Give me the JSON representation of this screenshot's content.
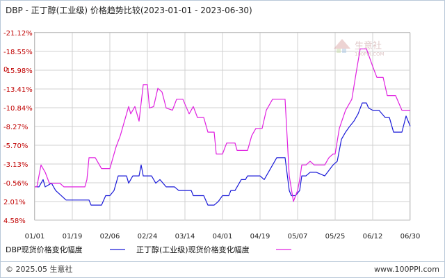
{
  "title": "DBP - 正丁醇(工业级) 价格趋势比较(2023-01-01 - 2023-06-30)",
  "watermark": {
    "name": "生意社",
    "url": "100PPI.COM"
  },
  "footer": {
    "left": "© 2025.05 生意社",
    "right": "www.100PPI.com"
  },
  "colors": {
    "series_dbp": "#1a1ad8",
    "series_nba": "#e020e0",
    "grid": "#d0d0d0",
    "tick": "#c00000",
    "border": "#b8c8d8"
  },
  "chart_data": {
    "type": "line",
    "title": "DBP - 正丁醇(工业级) 价格趋势比较(2023-01-01 - 2023-06-30)",
    "ylim": [
      -21.12,
      4.58
    ],
    "yticks": [
      "4.58%",
      "2.01%",
      "-0.56%",
      "-3.13%",
      "-5.70%",
      "-8.27%",
      "-10.84%",
      "-13.41%",
      "-15.98%",
      "-18.55%",
      "-21.12%"
    ],
    "ytick_values": [
      4.58,
      2.01,
      -0.56,
      -3.13,
      -5.7,
      -8.27,
      -10.84,
      -13.41,
      -15.98,
      -18.55,
      -21.12
    ],
    "zero_label": "0",
    "xticks": [
      "01/01",
      "01/19",
      "02/06",
      "02/24",
      "03/14",
      "04/01",
      "04/19",
      "05/07",
      "05/25",
      "06/12",
      "06/30"
    ],
    "x_start": "2023-01-01",
    "x_end": "2023-06-30",
    "grid": true,
    "legend": "bottom",
    "series": [
      {
        "name": "DBP现货价格变化幅度",
        "points": [
          [
            "2023-01-01",
            0
          ],
          [
            "2023-01-03",
            0
          ],
          [
            "2023-01-05",
            -1.0
          ],
          [
            "2023-01-06",
            0
          ],
          [
            "2023-01-09",
            -0.5
          ],
          [
            "2023-01-11",
            0.5
          ],
          [
            "2023-01-16",
            1.8
          ],
          [
            "2023-01-27",
            1.8
          ],
          [
            "2023-01-28",
            2.5
          ],
          [
            "2023-02-02",
            2.5
          ],
          [
            "2023-02-04",
            1.2
          ],
          [
            "2023-02-06",
            1.2
          ],
          [
            "2023-02-08",
            0.5
          ],
          [
            "2023-02-10",
            -1.5
          ],
          [
            "2023-02-14",
            -1.5
          ],
          [
            "2023-02-15",
            -0.5
          ],
          [
            "2023-02-17",
            -1.5
          ],
          [
            "2023-02-20",
            -1.5
          ],
          [
            "2023-02-21",
            -3.0
          ],
          [
            "2023-02-22",
            -1.5
          ],
          [
            "2023-02-26",
            -1.5
          ],
          [
            "2023-02-28",
            -0.5
          ],
          [
            "2023-03-02",
            -1.0
          ],
          [
            "2023-03-05",
            0
          ],
          [
            "2023-03-09",
            0
          ],
          [
            "2023-03-11",
            0.5
          ],
          [
            "2023-03-17",
            0.5
          ],
          [
            "2023-03-18",
            1.2
          ],
          [
            "2023-03-23",
            1.2
          ],
          [
            "2023-03-25",
            2.5
          ],
          [
            "2023-03-28",
            2.5
          ],
          [
            "2023-03-30",
            2.0
          ],
          [
            "2023-04-01",
            1.2
          ],
          [
            "2023-04-04",
            1.2
          ],
          [
            "2023-04-05",
            0.5
          ],
          [
            "2023-04-07",
            0.5
          ],
          [
            "2023-04-10",
            -1.0
          ],
          [
            "2023-04-12",
            -1.0
          ],
          [
            "2023-04-13",
            -1.5
          ],
          [
            "2023-04-19",
            -1.5
          ],
          [
            "2023-04-21",
            -1.0
          ],
          [
            "2023-04-23",
            -2.0
          ],
          [
            "2023-04-27",
            -4.0
          ],
          [
            "2023-05-01",
            -4.0
          ],
          [
            "2023-05-03",
            0.5
          ],
          [
            "2023-05-04",
            1.2
          ],
          [
            "2023-05-06",
            1.2
          ],
          [
            "2023-05-08",
            0.5
          ],
          [
            "2023-05-09",
            -1.5
          ],
          [
            "2023-05-11",
            -1.5
          ],
          [
            "2023-05-13",
            -2.0
          ],
          [
            "2023-05-16",
            -2.0
          ],
          [
            "2023-05-20",
            -1.5
          ],
          [
            "2023-05-24",
            -3.0
          ],
          [
            "2023-05-26",
            -3.5
          ],
          [
            "2023-05-28",
            -6.5
          ],
          [
            "2023-05-30",
            -7.5
          ],
          [
            "2023-06-01",
            -8.3
          ],
          [
            "2023-06-03",
            -9.0
          ],
          [
            "2023-06-05",
            -10.0
          ],
          [
            "2023-06-07",
            -11.5
          ],
          [
            "2023-06-09",
            -11.5
          ],
          [
            "2023-06-10",
            -10.8
          ],
          [
            "2023-06-12",
            -10.5
          ],
          [
            "2023-06-15",
            -10.5
          ],
          [
            "2023-06-18",
            -9.5
          ],
          [
            "2023-06-20",
            -9.5
          ],
          [
            "2023-06-22",
            -7.5
          ],
          [
            "2023-06-26",
            -7.5
          ],
          [
            "2023-06-28",
            -9.7
          ],
          [
            "2023-06-30",
            -8.3
          ]
        ]
      },
      {
        "name": "正丁醇(工业级)现货价格变化幅度",
        "points": [
          [
            "2023-01-01",
            0
          ],
          [
            "2023-01-02",
            0
          ],
          [
            "2023-01-04",
            -3.0
          ],
          [
            "2023-01-06",
            -2.0
          ],
          [
            "2023-01-08",
            -0.5
          ],
          [
            "2023-01-13",
            -0.5
          ],
          [
            "2023-01-15",
            0
          ],
          [
            "2023-01-25",
            0
          ],
          [
            "2023-01-26",
            -1.0
          ],
          [
            "2023-01-27",
            -4.0
          ],
          [
            "2023-01-30",
            -4.0
          ],
          [
            "2023-02-02",
            -2.5
          ],
          [
            "2023-02-06",
            -2.5
          ],
          [
            "2023-02-09",
            -5.5
          ],
          [
            "2023-02-11",
            -7.0
          ],
          [
            "2023-02-13",
            -9.0
          ],
          [
            "2023-02-15",
            -11.0
          ],
          [
            "2023-02-16",
            -10.0
          ],
          [
            "2023-02-18",
            -11.0
          ],
          [
            "2023-02-20",
            -9.0
          ],
          [
            "2023-02-22",
            -14.0
          ],
          [
            "2023-02-24",
            -14.0
          ],
          [
            "2023-02-25",
            -10.8
          ],
          [
            "2023-02-27",
            -11.0
          ],
          [
            "2023-03-01",
            -13.5
          ],
          [
            "2023-03-03",
            -13.0
          ],
          [
            "2023-03-05",
            -10.8
          ],
          [
            "2023-03-08",
            -10.5
          ],
          [
            "2023-03-10",
            -12.0
          ],
          [
            "2023-03-13",
            -12.0
          ],
          [
            "2023-03-16",
            -10.0
          ],
          [
            "2023-03-18",
            -11.0
          ],
          [
            "2023-03-20",
            -9.5
          ],
          [
            "2023-03-23",
            -9.5
          ],
          [
            "2023-03-25",
            -7.5
          ],
          [
            "2023-03-28",
            -7.5
          ],
          [
            "2023-03-29",
            -4.5
          ],
          [
            "2023-04-01",
            -4.5
          ],
          [
            "2023-04-03",
            -6.0
          ],
          [
            "2023-04-07",
            -6.0
          ],
          [
            "2023-04-08",
            -5.0
          ],
          [
            "2023-04-13",
            -5.0
          ],
          [
            "2023-04-15",
            -7.0
          ],
          [
            "2023-04-17",
            -8.0
          ],
          [
            "2023-04-20",
            -8.0
          ],
          [
            "2023-04-22",
            -10.5
          ],
          [
            "2023-04-25",
            -12.0
          ],
          [
            "2023-05-01",
            -12.0
          ],
          [
            "2023-05-03",
            -1.5
          ],
          [
            "2023-05-05",
            2.0
          ],
          [
            "2023-05-07",
            0.5
          ],
          [
            "2023-05-08",
            -1.0
          ],
          [
            "2023-05-09",
            -3.0
          ],
          [
            "2023-05-11",
            -3.0
          ],
          [
            "2023-05-13",
            -3.5
          ],
          [
            "2023-05-15",
            -3.0
          ],
          [
            "2023-05-20",
            -3.0
          ],
          [
            "2023-05-22",
            -4.0
          ],
          [
            "2023-05-24",
            -4.5
          ],
          [
            "2023-05-25",
            -4.5
          ],
          [
            "2023-05-27",
            -8.0
          ],
          [
            "2023-05-30",
            -10.5
          ],
          [
            "2023-06-02",
            -12.0
          ],
          [
            "2023-06-04",
            -15.5
          ],
          [
            "2023-06-06",
            -18.9
          ],
          [
            "2023-06-09",
            -18.9
          ],
          [
            "2023-06-12",
            -16.5
          ],
          [
            "2023-06-14",
            -15.0
          ],
          [
            "2023-06-17",
            -15.0
          ],
          [
            "2023-06-19",
            -12.5
          ],
          [
            "2023-06-23",
            -12.5
          ],
          [
            "2023-06-26",
            -10.5
          ],
          [
            "2023-06-30",
            -10.5
          ]
        ]
      }
    ]
  }
}
